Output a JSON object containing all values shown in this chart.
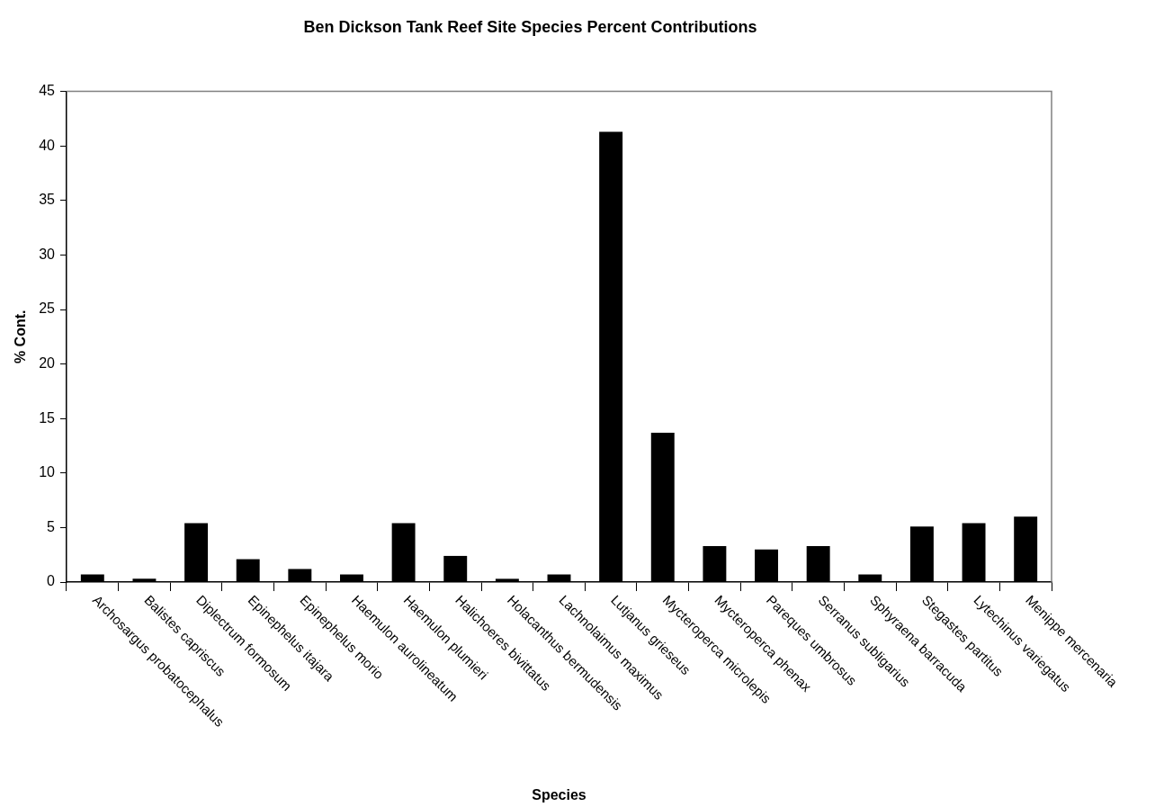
{
  "chart_data": {
    "type": "bar",
    "title": "Ben Dickson Tank Reef Site Species Percent Contributions",
    "xlabel": "Species",
    "ylabel": "% Cont.",
    "categories": [
      "Archosargus probatocephalus",
      "Balistes capriscus",
      "Diplectrum formosum",
      "Epinephelus itajara",
      "Epinephelus morio",
      "Haemulon aurolineatum",
      "Haemulon plumieri",
      "Halichoeres bivittatus",
      "Holacanthus bermudensis",
      "Lachnolaimus maximus",
      "Lutjanus grieseus",
      "Mycteroperca microlepis",
      "Mycteroperca phenax",
      "Pareques umbrosus",
      "Serranus subligarius",
      "Sphyraena barracuda",
      "Stegastes partitus",
      "Lytechinus variegatus",
      "Menippe mercenaria"
    ],
    "values": [
      0.7,
      0.3,
      5.4,
      2.1,
      1.2,
      0.7,
      5.4,
      2.4,
      0.3,
      0.7,
      41.3,
      13.7,
      3.3,
      3.0,
      3.3,
      0.7,
      5.1,
      5.4,
      6.0
    ],
    "color": "#000000",
    "ylim": [
      0,
      45
    ],
    "yticks": [
      0,
      5,
      10,
      15,
      20,
      25,
      30,
      35,
      40,
      45
    ],
    "grid": false,
    "legend": false
  }
}
